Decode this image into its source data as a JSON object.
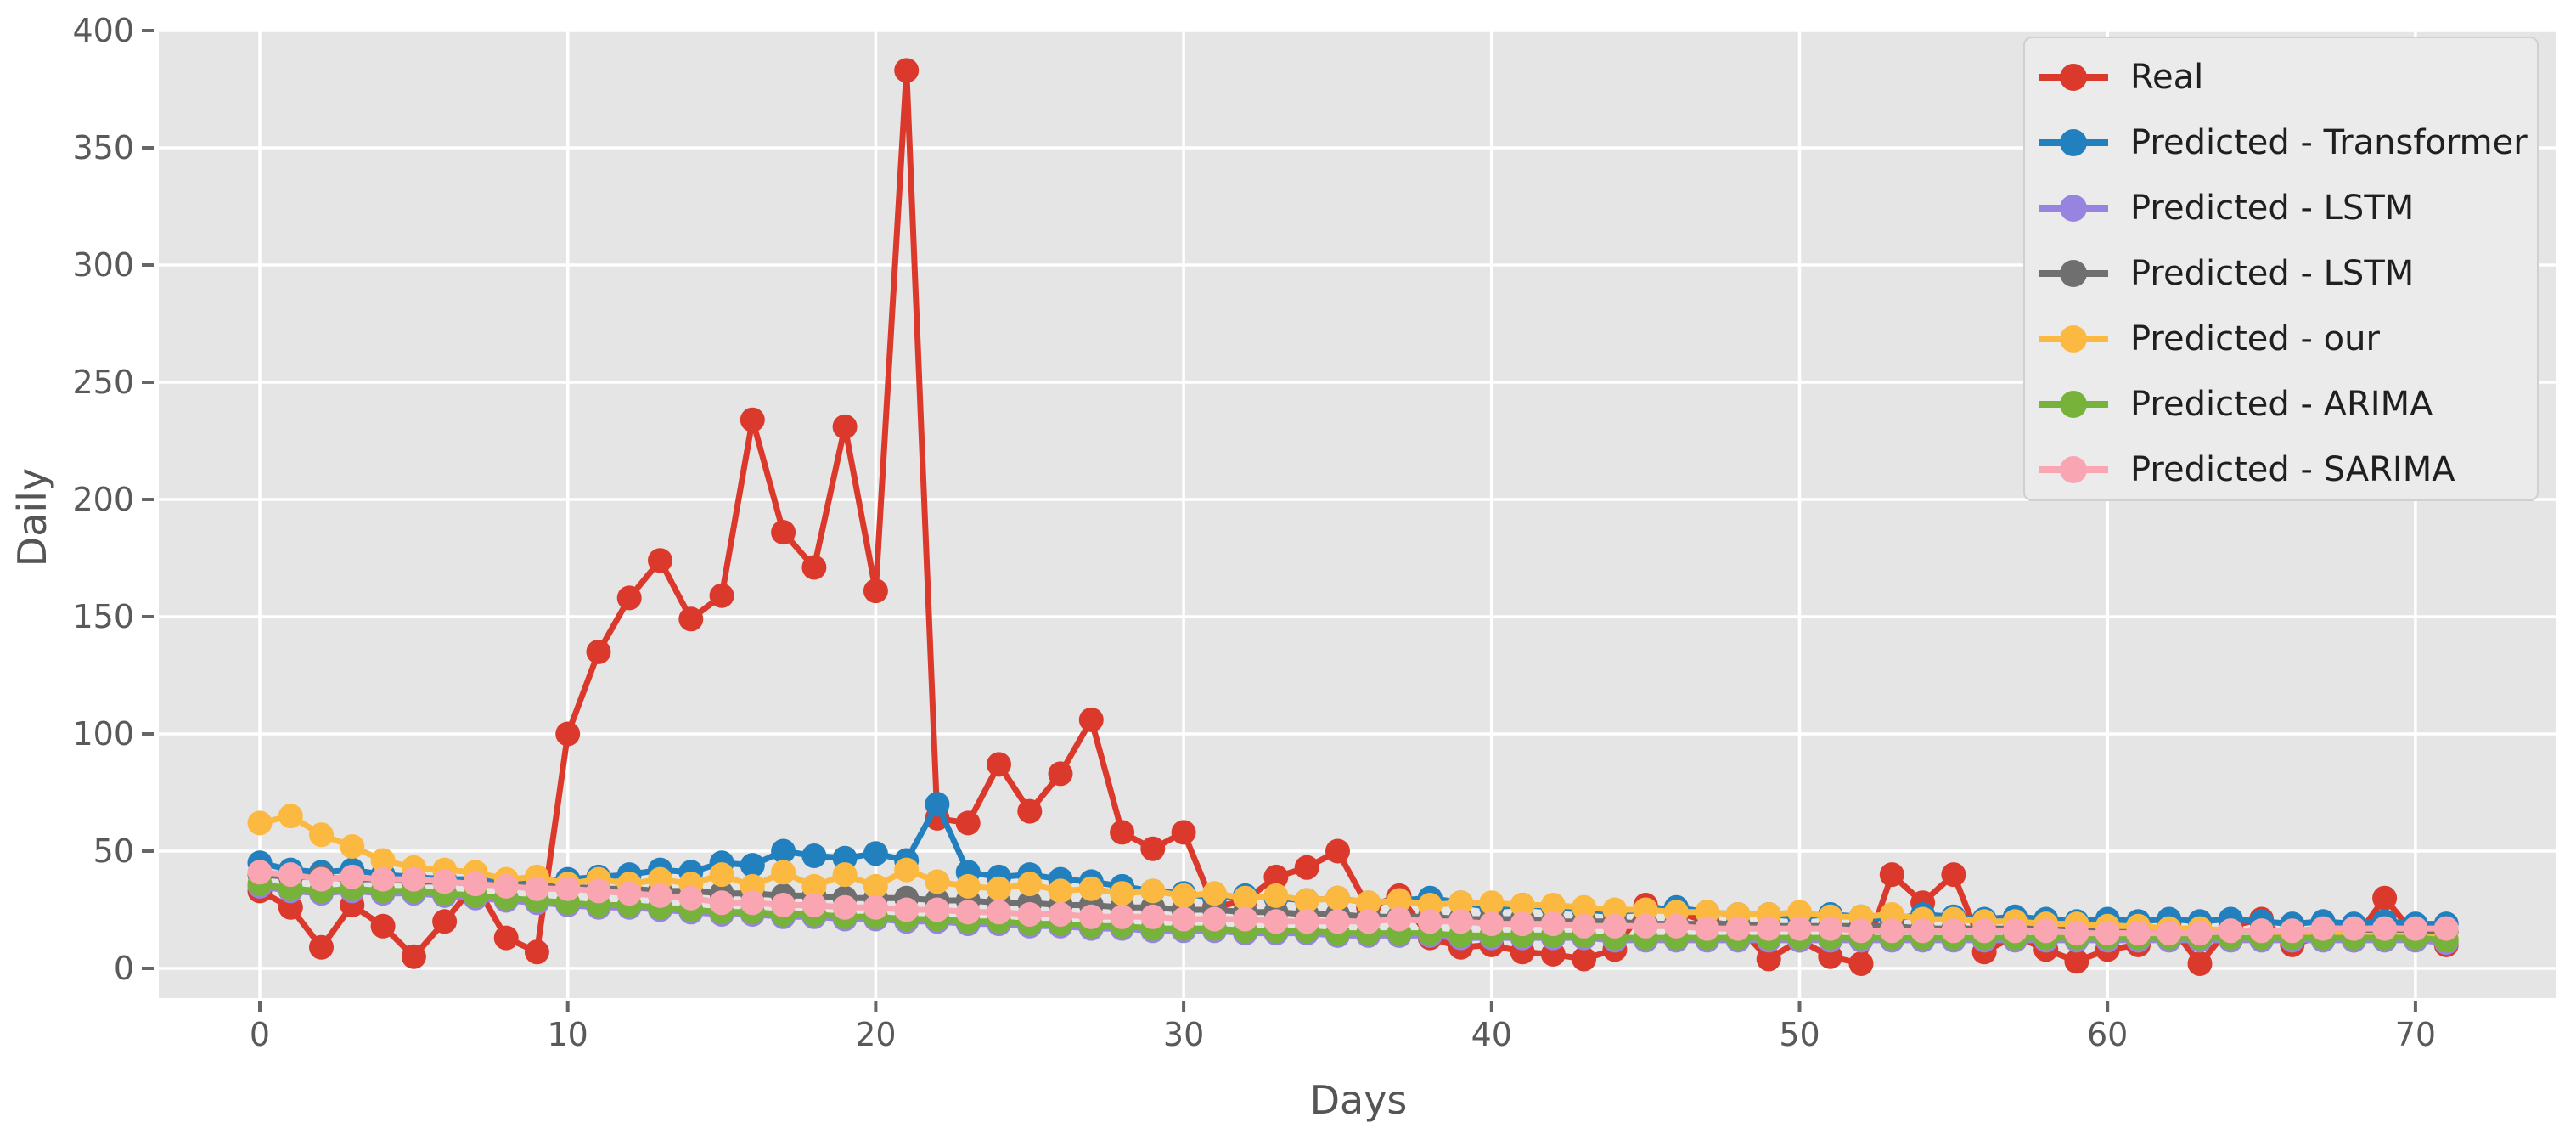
{
  "chart_data": {
    "type": "line",
    "title": "",
    "xlabel": "Days",
    "ylabel": "Daily",
    "legend_position": "upper right",
    "grid": true,
    "plot_background": "#e5e5e5",
    "grid_color": "#ffffff",
    "xlim": [
      -3.3,
      74.6
    ],
    "ylim": [
      -12.7,
      400
    ],
    "x_ticks": [
      0,
      10,
      20,
      30,
      40,
      50,
      60,
      70
    ],
    "y_ticks": [
      0,
      50,
      100,
      150,
      200,
      250,
      300,
      350,
      400
    ],
    "x": [
      0,
      1,
      2,
      3,
      4,
      5,
      6,
      7,
      8,
      9,
      10,
      11,
      12,
      13,
      14,
      15,
      16,
      17,
      18,
      19,
      20,
      21,
      22,
      23,
      24,
      25,
      26,
      27,
      28,
      29,
      30,
      31,
      32,
      33,
      34,
      35,
      36,
      37,
      38,
      39,
      40,
      41,
      42,
      43,
      44,
      45,
      46,
      47,
      48,
      49,
      50,
      51,
      52,
      53,
      54,
      55,
      56,
      57,
      58,
      59,
      60,
      61,
      62,
      63,
      64,
      65,
      66,
      67,
      68,
      69,
      70,
      71
    ],
    "series": [
      {
        "name": "Real",
        "color": "#db392c",
        "values": [
          33,
          26,
          9,
          27,
          18,
          5,
          20,
          36,
          13,
          7,
          100,
          135,
          158,
          174,
          149,
          159,
          234,
          186,
          171,
          231,
          161,
          383,
          64,
          62,
          87,
          67,
          83,
          106,
          58,
          51,
          58,
          26,
          29,
          39,
          43,
          50,
          26,
          31,
          13,
          9,
          10,
          7,
          6,
          4,
          8,
          27,
          24,
          20,
          18,
          4,
          12,
          5,
          2,
          40,
          28,
          40,
          7,
          14,
          8,
          3,
          8,
          10,
          19,
          2,
          18,
          21,
          10,
          14,
          12,
          30,
          14,
          10
        ]
      },
      {
        "name": "Predicted - Transformer",
        "color": "#2280bf",
        "values": [
          45,
          42,
          41,
          42,
          40,
          39,
          38,
          38,
          37,
          37,
          38,
          39,
          40,
          42,
          41,
          45,
          44,
          50,
          48,
          47,
          49,
          46,
          70,
          41,
          39,
          40,
          38,
          37,
          35,
          33,
          32,
          30,
          31,
          30,
          29,
          30,
          28,
          29,
          30,
          28,
          26,
          27,
          26,
          25,
          24,
          25,
          26,
          24,
          23,
          23,
          22,
          23,
          22,
          21,
          23,
          22,
          21,
          22,
          21,
          20,
          21,
          20,
          21,
          20,
          21,
          20,
          19,
          20,
          19,
          20,
          19,
          19
        ]
      },
      {
        "name": "Predicted - LSTM",
        "color": "#9784e0",
        "values": [
          35,
          33,
          32,
          33,
          32,
          32,
          31,
          30,
          29,
          28,
          27,
          26,
          26,
          25,
          24,
          23,
          23,
          22,
          22,
          21,
          21,
          20,
          20,
          19,
          19,
          18,
          18,
          17,
          17,
          16,
          16,
          16,
          15,
          15,
          15,
          14,
          14,
          14,
          14,
          13,
          13,
          13,
          13,
          13,
          12,
          12,
          12,
          12,
          12,
          12,
          12,
          12,
          12,
          12,
          12,
          12,
          12,
          12,
          12,
          12,
          12,
          12,
          12,
          12,
          12,
          12,
          12,
          12,
          12,
          12,
          12,
          11
        ]
      },
      {
        "name": "Predicted - LSTM",
        "color": "#6f6f6f",
        "values": [
          40,
          39,
          39,
          38,
          38,
          37,
          37,
          36,
          36,
          35,
          35,
          34,
          34,
          33,
          33,
          32,
          32,
          31,
          31,
          30,
          30,
          30,
          29,
          29,
          28,
          28,
          27,
          27,
          26,
          26,
          25,
          25,
          24,
          24,
          23,
          23,
          22,
          22,
          22,
          21,
          21,
          21,
          20,
          20,
          20,
          19,
          19,
          19,
          19,
          18,
          18,
          18,
          18,
          18,
          17,
          17,
          17,
          17,
          17,
          17,
          16,
          16,
          16,
          16,
          16,
          16,
          16,
          16,
          16,
          16,
          16,
          16
        ]
      },
      {
        "name": "Predicted - our",
        "color": "#fbb942",
        "values": [
          62,
          65,
          57,
          52,
          46,
          43,
          42,
          41,
          38,
          39,
          36,
          38,
          36,
          38,
          36,
          40,
          35,
          41,
          35,
          40,
          35,
          42,
          37,
          35,
          34,
          36,
          33,
          34,
          32,
          33,
          31,
          32,
          30,
          31,
          29,
          30,
          28,
          29,
          27,
          28,
          28,
          27,
          27,
          26,
          25,
          25,
          24,
          24,
          23,
          23,
          24,
          22,
          22,
          23,
          21,
          21,
          20,
          20,
          19,
          19,
          18,
          18,
          17,
          17,
          16,
          16,
          15,
          15,
          14,
          14,
          14,
          13
        ]
      },
      {
        "name": "Predicted - ARIMA",
        "color": "#77b33a",
        "values": [
          36,
          34,
          33,
          34,
          33,
          33,
          32,
          31,
          30,
          29,
          28,
          27,
          27,
          26,
          25,
          24,
          24,
          23,
          23,
          22,
          22,
          21,
          21,
          20,
          20,
          19,
          19,
          18,
          18,
          17,
          17,
          17,
          16,
          16,
          16,
          15,
          15,
          15,
          15,
          14,
          14,
          14,
          14,
          14,
          13,
          13,
          13,
          13,
          13,
          13,
          13,
          13,
          13,
          13,
          13,
          13,
          13,
          13,
          13,
          13,
          13,
          13,
          13,
          13,
          13,
          13,
          13,
          13,
          13,
          13,
          13,
          12
        ]
      },
      {
        "name": "Predicted - SARIMA",
        "color": "#f9a6b2",
        "values": [
          41,
          40,
          38,
          39,
          38,
          38,
          37,
          36,
          35,
          34,
          34,
          33,
          32,
          31,
          30,
          28,
          28,
          27,
          27,
          26,
          26,
          25,
          25,
          24,
          24,
          23,
          23,
          22,
          22,
          22,
          21,
          21,
          21,
          20,
          20,
          20,
          20,
          21,
          20,
          20,
          19,
          19,
          19,
          18,
          18,
          18,
          18,
          17,
          17,
          17,
          17,
          17,
          16,
          16,
          16,
          16,
          16,
          16,
          16,
          15,
          15,
          15,
          15,
          15,
          16,
          16,
          16,
          17,
          17,
          17,
          17,
          17
        ]
      }
    ]
  }
}
